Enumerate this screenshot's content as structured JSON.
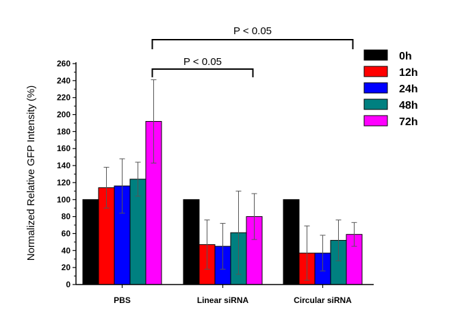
{
  "chart_data": {
    "type": "bar",
    "ylabel": "Normalized Relative GFP Intensity (%)",
    "xlabel": "",
    "ylim": [
      0,
      260
    ],
    "yticks": [
      0,
      20,
      40,
      60,
      80,
      100,
      120,
      140,
      160,
      180,
      200,
      220,
      240,
      260
    ],
    "categories": [
      "PBS",
      "Linear siRNA",
      "Circular siRNA"
    ],
    "legend_position": "top-right",
    "series": [
      {
        "name": "0h",
        "color": "#000000",
        "values": [
          100,
          100,
          100
        ],
        "errors": [
          0,
          0,
          0
        ]
      },
      {
        "name": "12h",
        "color": "#ff0000",
        "values": [
          114,
          47,
          37
        ],
        "errors": [
          24,
          29,
          32
        ]
      },
      {
        "name": "24h",
        "color": "#0000ff",
        "values": [
          116,
          45,
          37
        ],
        "errors": [
          32,
          27,
          21
        ]
      },
      {
        "name": "48h",
        "color": "#008080",
        "values": [
          124,
          61,
          52
        ],
        "errors": [
          20,
          49,
          24
        ]
      },
      {
        "name": "72h",
        "color": "#ff00ff",
        "values": [
          192,
          80,
          59
        ],
        "errors": [
          49,
          27,
          14
        ]
      }
    ],
    "annotations": [
      {
        "text": "P < 0.05",
        "from_category": "PBS",
        "from_series": "72h",
        "to_category": "Linear siRNA",
        "to_series": "72h",
        "level": 1
      },
      {
        "text": "P < 0.05",
        "from_category": "PBS",
        "from_series": "72h",
        "to_category": "Circular siRNA",
        "to_series": "72h",
        "level": 2
      }
    ]
  }
}
